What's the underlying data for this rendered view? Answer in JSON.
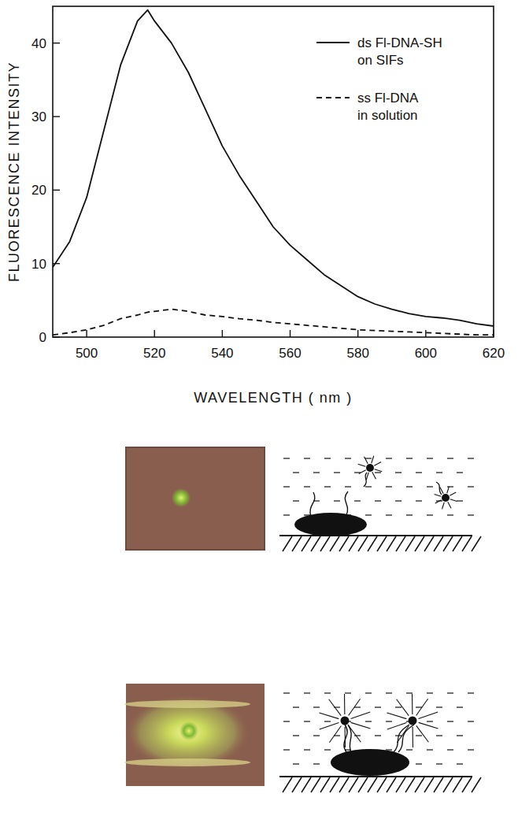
{
  "chart_data": {
    "type": "line",
    "x_label": "WAVELENGTH ( nm )",
    "y_label": "FLUORESCENCE INTENSITY",
    "x": [
      490,
      495,
      500,
      505,
      510,
      515,
      518,
      520,
      525,
      530,
      535,
      540,
      545,
      550,
      555,
      560,
      565,
      570,
      575,
      580,
      585,
      590,
      595,
      600,
      605,
      610,
      615,
      620
    ],
    "series": [
      {
        "name": "ds Fl-DNA-SH on SIFs",
        "color": "#111111",
        "line_style": "solid",
        "values": [
          9.5,
          13,
          19,
          28,
          37,
          43,
          44.5,
          43,
          40,
          36,
          31,
          26,
          22,
          18.5,
          15,
          12.5,
          10.5,
          8.5,
          7,
          5.5,
          4.5,
          3.8,
          3.2,
          2.8,
          2.6,
          2.3,
          1.8,
          1.5
        ]
      },
      {
        "name": "ss Fl-DNA in solution",
        "color": "#111111",
        "line_style": "dashed",
        "values": [
          0.3,
          0.6,
          1.0,
          1.6,
          2.5,
          3.0,
          3.4,
          3.5,
          3.8,
          3.5,
          3.0,
          2.8,
          2.5,
          2.3,
          2.0,
          1.8,
          1.6,
          1.4,
          1.2,
          1.0,
          0.9,
          0.8,
          0.7,
          0.6,
          0.5,
          0.4,
          0.3,
          0.3
        ]
      }
    ],
    "xlim": [
      490,
      620
    ],
    "xticks": [
      500,
      520,
      540,
      560,
      580,
      600,
      620
    ],
    "ylim": [
      0,
      45
    ],
    "yticks": [
      0,
      10,
      20,
      30,
      40
    ],
    "grid": false,
    "legend": "top-right"
  }
}
